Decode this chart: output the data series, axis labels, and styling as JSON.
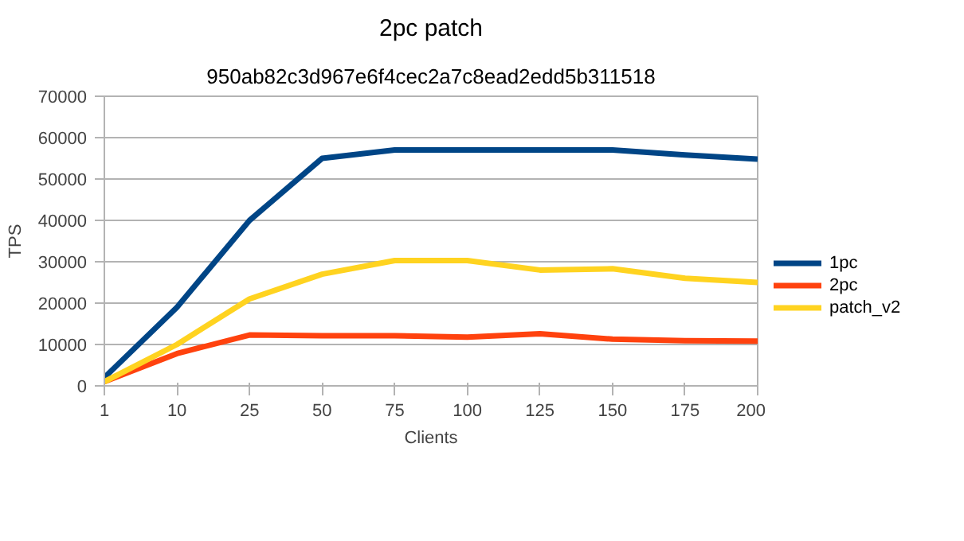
{
  "chart_data": {
    "type": "line",
    "title": "2pc patch",
    "subtitle": "950ab82c3d967e6f4cec2a7c8ead2edd5b311518",
    "xlabel": "Clients",
    "ylabel": "TPS",
    "categories": [
      "1",
      "10",
      "25",
      "50",
      "75",
      "100",
      "125",
      "150",
      "175",
      "200"
    ],
    "series": [
      {
        "name": "1pc",
        "color": "#004586",
        "values": [
          2000,
          19000,
          40000,
          55000,
          57000,
          57000,
          57000,
          57000,
          55800,
          54800
        ]
      },
      {
        "name": "2pc",
        "color": "#ff420e",
        "values": [
          1000,
          7800,
          12300,
          12100,
          12100,
          11800,
          12600,
          11300,
          10900,
          10800
        ]
      },
      {
        "name": "patch_v2",
        "color": "#ffd320",
        "values": [
          1000,
          10000,
          21000,
          27000,
          30300,
          30300,
          28000,
          28300,
          26000,
          25000
        ]
      }
    ],
    "ylim": [
      0,
      70000
    ],
    "yticks": [
      0,
      10000,
      20000,
      30000,
      40000,
      50000,
      60000,
      70000
    ],
    "grid": "y",
    "legend": "right",
    "marker": "none",
    "line_style": "solid"
  }
}
